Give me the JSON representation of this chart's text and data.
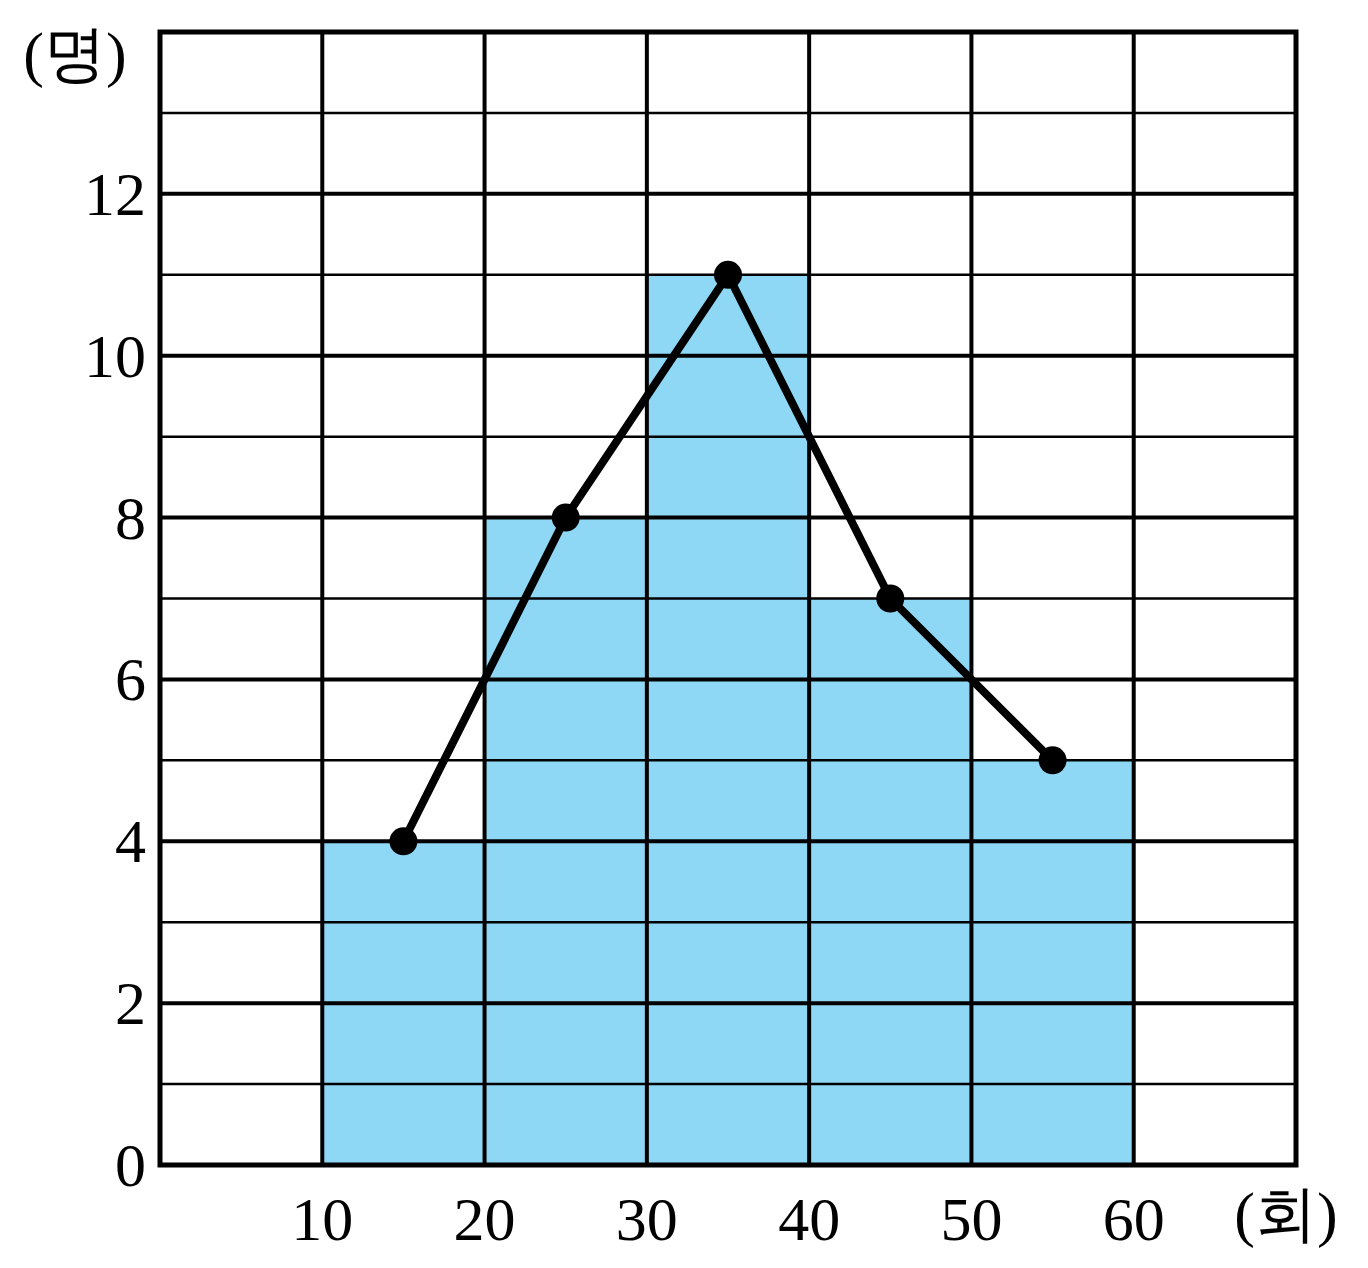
{
  "chart_data": {
    "type": "histogram",
    "xlabel": "(회)",
    "ylabel": "(명)",
    "xlim": [
      0,
      70
    ],
    "ylim": [
      0,
      14
    ],
    "xticks": [
      10,
      20,
      30,
      40,
      50,
      60
    ],
    "yticks": [
      0,
      {
        "value": 1,
        "label": null
      },
      2,
      {
        "value": 3,
        "label": null
      },
      4,
      {
        "value": 5,
        "label": null
      },
      6,
      {
        "value": 7,
        "label": null
      },
      8,
      {
        "value": 9,
        "label": null
      },
      10,
      {
        "value": 11,
        "label": null
      },
      12,
      {
        "value": 13,
        "label": null
      }
    ],
    "grid": true,
    "marker": "circle",
    "bins": [
      10,
      20,
      30,
      40,
      50,
      60
    ],
    "values": [
      4,
      8,
      11,
      7,
      5
    ],
    "color": "#8fd8f5",
    "series": [
      {
        "type": "line",
        "x": [
          15,
          25,
          35,
          45,
          55
        ],
        "values": [
          4,
          8,
          11,
          7,
          5
        ],
        "color": "#000000"
      }
    ]
  }
}
